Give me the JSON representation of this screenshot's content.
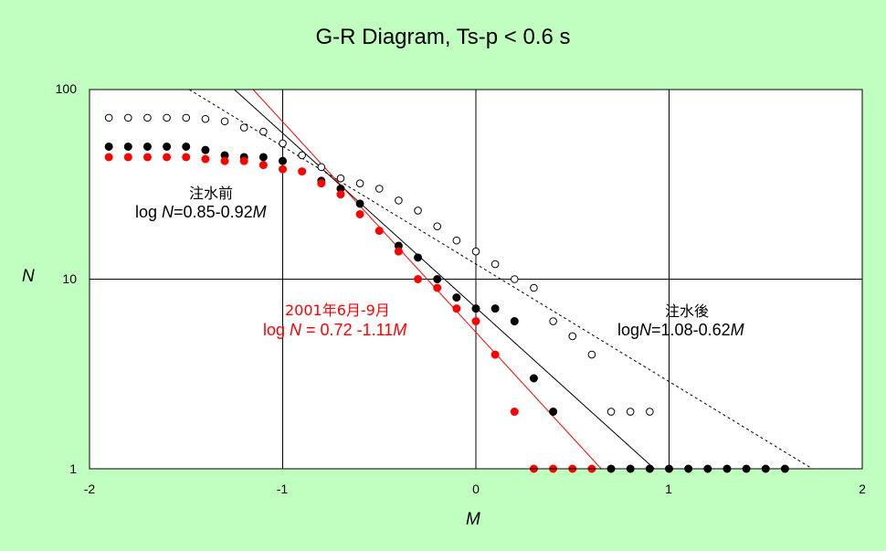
{
  "chart_data": {
    "type": "scatter",
    "title": "G-R Diagram, Ts-p < 0.6 s",
    "xlabel": "M",
    "ylabel": "N",
    "xlim": [
      -2,
      2
    ],
    "ylim": [
      1,
      100
    ],
    "yscale": "log",
    "grid": true,
    "x_ticks": [
      "-2",
      "-1",
      "0",
      "1",
      "2"
    ],
    "y_ticks": [
      "1",
      "10",
      "100"
    ],
    "series": [
      {
        "name": "注水後",
        "marker": "open-circle",
        "color": "#000000",
        "x": [
          -1.9,
          -1.8,
          -1.7,
          -1.6,
          -1.5,
          -1.4,
          -1.3,
          -1.2,
          -1.1,
          -1.0,
          -0.9,
          -0.8,
          -0.7,
          -0.6,
          -0.5,
          -0.4,
          -0.3,
          -0.2,
          -0.1,
          0.0,
          0.1,
          0.2,
          0.3,
          0.4,
          0.5,
          0.6,
          0.7,
          0.8,
          0.9
        ],
        "y": [
          71,
          71,
          71,
          71,
          71,
          70,
          68,
          63,
          60,
          52,
          45,
          39,
          34,
          32,
          30,
          26,
          23,
          19,
          16,
          14,
          12,
          10,
          9,
          6,
          5,
          4,
          2,
          2,
          2
        ]
      },
      {
        "name": "注水前",
        "marker": "filled-circle",
        "color": "#000000",
        "x": [
          -1.9,
          -1.8,
          -1.7,
          -1.6,
          -1.5,
          -1.4,
          -1.3,
          -1.2,
          -1.1,
          -1.0,
          -0.8,
          -0.7,
          -0.6,
          -0.4,
          -0.3,
          -0.2,
          -0.1,
          0.0,
          0.1,
          0.2,
          0.3,
          0.4,
          0.7,
          0.8,
          0.9,
          1.0,
          1.1,
          1.2,
          1.3,
          1.4,
          1.5,
          1.6
        ],
        "y": [
          50,
          50,
          50,
          50,
          50,
          48,
          45,
          44,
          44,
          42,
          33,
          30,
          25,
          15,
          13,
          10,
          8,
          7,
          7,
          6,
          3,
          2,
          1,
          1,
          1,
          1,
          1,
          1,
          1,
          1,
          1,
          1
        ]
      },
      {
        "name": "2001年6月-9月",
        "marker": "filled-circle",
        "color": "#ff0000",
        "x": [
          -1.9,
          -1.8,
          -1.7,
          -1.6,
          -1.5,
          -1.4,
          -1.3,
          -1.2,
          -1.1,
          -1.0,
          -0.9,
          -0.8,
          -0.7,
          -0.6,
          -0.5,
          -0.4,
          -0.3,
          -0.2,
          -0.1,
          0.0,
          0.1,
          0.2,
          0.3,
          0.4,
          0.5,
          0.6
        ],
        "y": [
          44,
          44,
          44,
          44,
          44,
          43,
          42,
          42,
          40,
          38,
          37,
          32,
          28,
          22,
          18,
          14,
          10,
          9,
          7,
          6,
          4,
          2,
          1,
          1,
          1,
          1
        ]
      }
    ],
    "fit_lines": [
      {
        "series": "注水後",
        "a": 1.08,
        "b": 0.62,
        "style": "dashed",
        "color": "#000000"
      },
      {
        "series": "注水前",
        "a": 0.85,
        "b": 0.92,
        "style": "solid",
        "color": "#000000"
      },
      {
        "series": "2001年6月-9月",
        "a": 0.72,
        "b": 1.11,
        "style": "solid",
        "color": "#ff0000"
      }
    ],
    "annotations": {
      "before_label": "注水前",
      "before_eq_prefix": "log ",
      "before_eq_var": "N",
      "before_eq_mid": "=0.85-0.92",
      "before_eq_var2": "M",
      "red_label": "2001年6月-9月",
      "red_eq_prefix": "log ",
      "red_eq_var": "N",
      "red_eq_mid": " = 0.72 -1.11",
      "red_eq_var2": "M",
      "after_label": "注水後",
      "after_eq_prefix": "log",
      "after_eq_var": "N",
      "after_eq_mid": "=1.08-0.62",
      "after_eq_var2": "M"
    }
  }
}
